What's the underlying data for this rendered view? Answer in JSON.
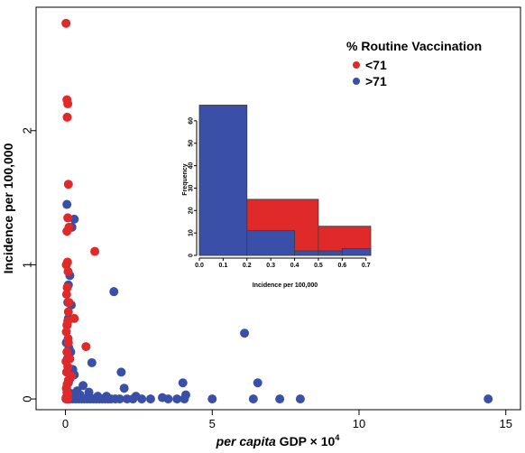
{
  "chart_data": [
    {
      "type": "scatter",
      "title": "",
      "xlabel_italic": "per capita",
      "xlabel_rest": " GDP × 10",
      "xlabel_exp": "4",
      "ylabel": "Incidence per 100,000",
      "xlim": [
        -1,
        15.5
      ],
      "ylim": [
        -0.08,
        2.92
      ],
      "x_ticks": [
        0,
        5,
        10,
        15
      ],
      "y_ticks": [
        0,
        1,
        2
      ],
      "legend": {
        "title": "% Routine Vaccination",
        "position": "top-right",
        "entries": [
          {
            "label": "<71",
            "color": "#e02a2a"
          },
          {
            "label": ">71",
            "color": "#3a4fa8"
          }
        ]
      },
      "series": [
        {
          "name": "<71",
          "color": "#e02a2a",
          "x": [
            0.02,
            0.05,
            0.08,
            0.06,
            0.1,
            0.08,
            0.12,
            0.05,
            1.0,
            0.07,
            0.03,
            0.09,
            0.06,
            0.04,
            0.12,
            0.1,
            0.3,
            0.08,
            0.05,
            0.03,
            0.09,
            0.1,
            0.7,
            0.05,
            0.15,
            0.02,
            0.08,
            0.04,
            0.2,
            0.1,
            0.06,
            0.03,
            0.05,
            0.08,
            0.02,
            0.04,
            0.06,
            0.07
          ],
          "y": [
            2.8,
            2.23,
            2.2,
            2.1,
            1.6,
            1.35,
            1.28,
            1.25,
            1.1,
            1.02,
            1.0,
            0.95,
            0.83,
            0.78,
            0.72,
            0.65,
            0.6,
            0.58,
            0.55,
            0.5,
            0.45,
            0.42,
            0.39,
            0.35,
            0.3,
            0.28,
            0.24,
            0.2,
            0.17,
            0.14,
            0.11,
            0.08,
            0.05,
            0.03,
            0.01,
            0.0,
            0.0,
            0.0
          ]
        },
        {
          "name": ">71",
          "color": "#3a4fa8",
          "x": [
            0.05,
            0.3,
            0.22,
            0.15,
            0.1,
            0.08,
            0.2,
            1.65,
            0.1,
            0.06,
            6.1,
            0.03,
            0.12,
            0.18,
            0.9,
            0.07,
            0.25,
            0.3,
            0.15,
            0.1,
            0.6,
            0.04,
            1.9,
            0.4,
            0.8,
            4.0,
            6.55,
            2.0,
            0.2,
            0.35,
            0.5,
            0.8,
            1.1,
            1.4,
            2.4,
            3.3,
            4.1,
            0.02,
            0.1,
            0.15,
            0.25,
            0.35,
            0.45,
            0.55,
            0.65,
            0.75,
            0.85,
            0.95,
            1.05,
            1.15,
            1.25,
            1.35,
            1.45,
            1.55,
            1.7,
            1.85,
            2.1,
            2.3,
            2.6,
            2.9,
            3.5,
            3.8,
            4.05,
            5.0,
            6.4,
            7.3,
            8.0,
            14.4
          ],
          "y": [
            1.45,
            1.34,
            1.28,
            0.92,
            0.85,
            0.72,
            0.7,
            0.8,
            0.6,
            0.55,
            0.49,
            0.42,
            0.38,
            0.35,
            0.27,
            0.3,
            0.22,
            0.18,
            0.15,
            0.12,
            0.1,
            0.08,
            0.2,
            0.06,
            0.05,
            0.12,
            0.12,
            0.08,
            0.04,
            0.03,
            0.03,
            0.02,
            0.02,
            0.02,
            0.02,
            0.01,
            0.03,
            0.0,
            0.0,
            0.0,
            0.0,
            0.0,
            0.0,
            0.0,
            0.0,
            0.0,
            0.0,
            0.0,
            0.0,
            0.0,
            0.0,
            0.0,
            0.0,
            0.0,
            0.0,
            0.0,
            0.0,
            0.0,
            0.0,
            0.0,
            0.0,
            0.0,
            0.0,
            0.0,
            0.0,
            0.0,
            0.0,
            0.0
          ]
        }
      ]
    },
    {
      "type": "bar",
      "title": "",
      "xlabel": "Incidence per 100,000",
      "ylabel": "Frequency",
      "xlim": [
        0,
        0.72
      ],
      "ylim": [
        0,
        68
      ],
      "x_ticks": [
        "0.0",
        "0.1",
        "0.2",
        "0.3",
        "0.4",
        "0.5",
        "0.6",
        "0.7"
      ],
      "y_ticks": [
        0,
        10,
        20,
        30,
        40,
        50,
        60
      ],
      "series": [
        {
          "name": "<71",
          "color": "#e02a2a",
          "bins": [
            {
              "from": 0.0,
              "to": 0.2,
              "value": 25
            },
            {
              "from": 0.2,
              "to": 0.5,
              "value": 25
            },
            {
              "from": 0.5,
              "to": 0.72,
              "value": 13
            }
          ]
        },
        {
          "name": ">71",
          "color": "#3a4fa8",
          "bins": [
            {
              "from": 0.0,
              "to": 0.2,
              "value": 67
            },
            {
              "from": 0.2,
              "to": 0.4,
              "value": 11
            },
            {
              "from": 0.4,
              "to": 0.5,
              "value": 2
            },
            {
              "from": 0.5,
              "to": 0.6,
              "value": 2
            },
            {
              "from": 0.6,
              "to": 0.72,
              "value": 3
            }
          ]
        }
      ]
    }
  ]
}
